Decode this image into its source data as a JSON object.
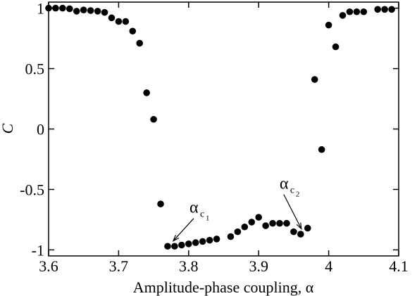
{
  "chart_data": {
    "type": "scatter",
    "xlabel": "Amplitude-phase coupling, α",
    "ylabel": "C",
    "xlim": [
      3.6,
      4.1
    ],
    "ylim": [
      -1.05,
      1.05
    ],
    "x_ticks": [
      3.6,
      3.7,
      3.8,
      3.9,
      4.0,
      4.1
    ],
    "x_tick_labels": [
      "3.6",
      "3.7",
      "3.8",
      "3.9",
      "4",
      "4.1"
    ],
    "y_ticks": [
      -1,
      -0.5,
      0,
      0.5,
      1
    ],
    "y_tick_labels": [
      "-1",
      "-0.5",
      "0",
      "0.5",
      "1"
    ],
    "grid": false,
    "marker_color": "#000000",
    "points": [
      [
        3.6,
        1.0
      ],
      [
        3.61,
        1.0
      ],
      [
        3.62,
        1.0
      ],
      [
        3.63,
        0.995
      ],
      [
        3.64,
        0.975
      ],
      [
        3.65,
        0.985
      ],
      [
        3.66,
        0.98
      ],
      [
        3.67,
        0.975
      ],
      [
        3.68,
        0.965
      ],
      [
        3.69,
        0.92
      ],
      [
        3.7,
        0.89
      ],
      [
        3.71,
        0.89
      ],
      [
        3.72,
        0.81
      ],
      [
        3.73,
        0.71
      ],
      [
        3.74,
        0.3
      ],
      [
        3.75,
        0.08
      ],
      [
        3.76,
        -0.62
      ],
      [
        3.77,
        -0.97
      ],
      [
        3.78,
        -0.97
      ],
      [
        3.79,
        -0.96
      ],
      [
        3.8,
        -0.95
      ],
      [
        3.81,
        -0.94
      ],
      [
        3.82,
        -0.93
      ],
      [
        3.83,
        -0.92
      ],
      [
        3.84,
        -0.91
      ],
      [
        3.86,
        -0.89
      ],
      [
        3.87,
        -0.85
      ],
      [
        3.88,
        -0.81
      ],
      [
        3.89,
        -0.77
      ],
      [
        3.9,
        -0.73
      ],
      [
        3.91,
        -0.8
      ],
      [
        3.92,
        -0.78
      ],
      [
        3.93,
        -0.78
      ],
      [
        3.94,
        -0.78
      ],
      [
        3.95,
        -0.85
      ],
      [
        3.96,
        -0.87
      ],
      [
        3.97,
        -0.82
      ],
      [
        3.98,
        0.41
      ],
      [
        3.99,
        -0.17
      ],
      [
        4.0,
        0.86
      ],
      [
        4.01,
        0.68
      ],
      [
        4.02,
        0.94
      ],
      [
        4.03,
        0.97
      ],
      [
        4.04,
        0.97
      ],
      [
        4.05,
        0.97
      ],
      [
        4.07,
        0.99
      ],
      [
        4.08,
        0.99
      ],
      [
        4.09,
        0.99
      ]
    ],
    "annotations": [
      {
        "base": "α",
        "sub": "c",
        "subsub": "1",
        "point": [
          3.775,
          -0.955
        ]
      },
      {
        "base": "α",
        "sub": "c",
        "subsub": "2",
        "point": [
          3.962,
          -0.855
        ]
      }
    ]
  }
}
